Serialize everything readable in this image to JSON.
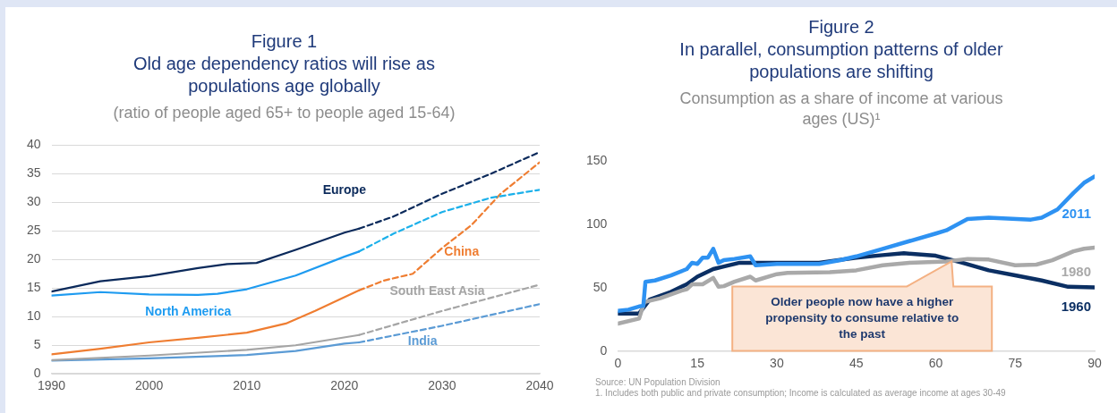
{
  "chart_data": [
    {
      "type": "line",
      "title": "Figure 1\nOld age dependency ratios will rise as\npopulations age globally",
      "subtitle": "(ratio of people aged 65+ to people aged 15-64)",
      "xlim": [
        1990,
        2040
      ],
      "xticks": [
        1990,
        2000,
        2010,
        2020,
        2030,
        2040
      ],
      "ylim": [
        0,
        40
      ],
      "yticks": [
        0,
        5,
        10,
        15,
        20,
        25,
        30,
        35,
        40
      ],
      "grid": "y",
      "legend": false,
      "marker": "none",
      "series": [
        {
          "name": "Europe",
          "color": "#0b2a5b",
          "line_style": "solid",
          "x": [
            1990,
            1995,
            2000,
            2005,
            2008,
            2011,
            2015,
            2020,
            2021.5
          ],
          "values": [
            14.4,
            16.2,
            17.1,
            18.5,
            19.2,
            19.4,
            21.7,
            24.7,
            25.4
          ]
        },
        {
          "color": "#0b2a5b",
          "line_style": "dashed",
          "x": [
            2021.5,
            2025,
            2030,
            2035,
            2040
          ],
          "values": [
            25.4,
            27.5,
            31.5,
            35,
            38.8
          ]
        },
        {
          "name": "North America",
          "color": "#1e9bf0",
          "line_style": "solid",
          "x": [
            1990,
            1995,
            2000,
            2005,
            2007,
            2010,
            2015,
            2020,
            2021.5
          ],
          "values": [
            13.7,
            14.3,
            13.9,
            13.8,
            14,
            14.8,
            17.2,
            20.5,
            21.4
          ]
        },
        {
          "color": "#1bb0ea",
          "line_style": "dashed",
          "x": [
            2021.5,
            2025,
            2030,
            2035,
            2040
          ],
          "values": [
            21.4,
            24.5,
            28.3,
            30.8,
            32.2
          ]
        },
        {
          "name": "China",
          "color": "#ef7d31",
          "line_style": "solid",
          "x": [
            1990,
            1995,
            2000,
            2005,
            2010,
            2014,
            2017,
            2021.5
          ],
          "values": [
            3.4,
            4.4,
            5.5,
            6.3,
            7.2,
            8.8,
            11,
            14.6
          ]
        },
        {
          "color": "#ef7d31",
          "line_style": "dashed",
          "x": [
            2021.5,
            2024,
            2027,
            2030,
            2033,
            2036,
            2040
          ],
          "values": [
            14.6,
            16.3,
            17.5,
            22,
            26,
            31.5,
            37
          ]
        },
        {
          "name": "South East Asia",
          "color": "#a5a5a5",
          "line_style": "solid",
          "x": [
            1990,
            2000,
            2010,
            2015,
            2021.5
          ],
          "values": [
            2.4,
            3.2,
            4.2,
            5,
            6.8
          ]
        },
        {
          "color": "#a5a5a5",
          "line_style": "dashed",
          "x": [
            2021.5,
            2030,
            2040
          ],
          "values": [
            6.8,
            11,
            15.6
          ]
        },
        {
          "name": "India",
          "color": "#5b9bd5",
          "line_style": "solid",
          "x": [
            1990,
            2000,
            2010,
            2015,
            2020,
            2021.5
          ],
          "values": [
            2.3,
            2.7,
            3.3,
            4,
            5.3,
            5.5
          ]
        },
        {
          "color": "#5b9bd5",
          "line_style": "dashed",
          "x": [
            2021.5,
            2030,
            2040
          ],
          "values": [
            5.5,
            8.4,
            12.2
          ]
        }
      ]
    },
    {
      "type": "line",
      "title": "Figure 2\nIn parallel, consumption patterns of older\npopulations are shifting",
      "subtitle": "Consumption as a share of income at various\nages (US)¹",
      "xlim": [
        0,
        90
      ],
      "xticks": [
        0,
        15,
        30,
        45,
        60,
        75,
        90
      ],
      "ylim": [
        0,
        150
      ],
      "yticks": [
        0,
        50,
        100,
        150
      ],
      "grid": false,
      "legend": false,
      "marker": "none",
      "line_style": "solid",
      "series": [
        {
          "name": "2011",
          "color": "#2e92f2",
          "x": [
            0,
            2,
            4,
            4.8,
            5.2,
            7,
            10,
            13,
            14,
            15,
            16,
            17,
            18,
            19,
            20,
            22,
            25,
            26,
            30,
            38,
            42,
            45,
            50,
            55,
            60,
            62,
            66,
            70,
            78,
            80,
            83,
            86,
            88,
            90
          ],
          "values": [
            32,
            33,
            35.5,
            36,
            55,
            56,
            60,
            65,
            70,
            69,
            74,
            74,
            81,
            70,
            72,
            73,
            75,
            68,
            69,
            69,
            72,
            75,
            81,
            87,
            93,
            95.5,
            104.5,
            105.5,
            104,
            105.5,
            112,
            125,
            133,
            138
          ]
        },
        {
          "name": "1980",
          "color": "#a9a9a9",
          "x": [
            0,
            4,
            5,
            8,
            12,
            13,
            14,
            15,
            16,
            18,
            19,
            20,
            22,
            25,
            26,
            30,
            32,
            40,
            45,
            50,
            55,
            62,
            66,
            70,
            75,
            79,
            82,
            86,
            88,
            90
          ],
          "values": [
            22,
            26,
            39,
            42,
            48,
            49,
            53,
            53,
            53,
            58,
            51,
            51.5,
            55,
            59,
            56,
            61,
            62,
            62.5,
            64,
            68,
            70,
            71,
            73,
            72.5,
            68,
            68.5,
            72,
            79,
            81,
            82
          ]
        },
        {
          "name": "1960",
          "color": "#0b2f63",
          "x": [
            0,
            4,
            6,
            10,
            13,
            15,
            18,
            20,
            23,
            30,
            38,
            45,
            50,
            54,
            60,
            65,
            70,
            75,
            80,
            85,
            90
          ],
          "values": [
            30,
            30,
            41,
            47,
            53,
            59,
            65,
            67,
            70,
            70,
            70,
            74,
            76,
            77.5,
            75.5,
            70,
            64,
            60,
            56,
            51,
            50.5
          ]
        }
      ],
      "annotations": [
        {
          "text": "Older people now have a higher propensity to consume relative to the past",
          "x": 63,
          "y": 71
        },
        "Source: UN Population Division",
        "1. Includes both public and private consumption; Income is calculated as average income at ages 30-49"
      ]
    }
  ]
}
